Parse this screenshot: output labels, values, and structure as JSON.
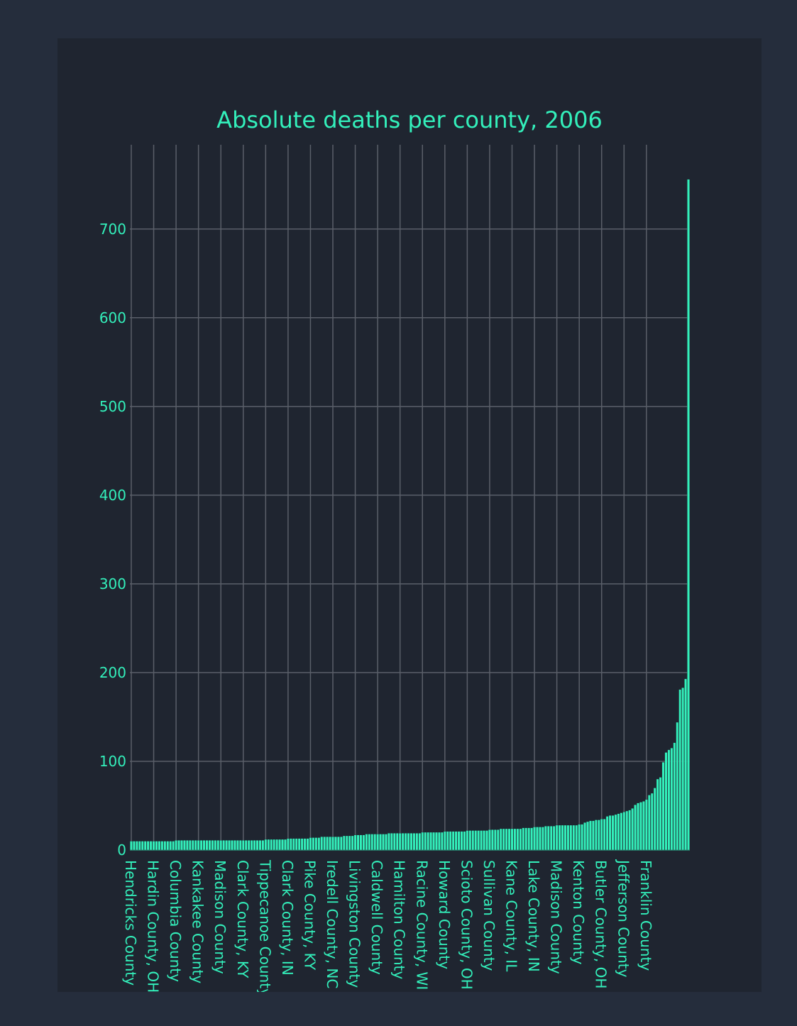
{
  "colors": {
    "background": "#252d3c",
    "panel": "#1f2530",
    "accent": "#33f0bb",
    "grid": "#5a5f69"
  },
  "chart_data": {
    "type": "bar",
    "title": "Absolute deaths per county, 2006",
    "xlabel": "",
    "ylabel": "",
    "ylim": [
      0,
      795
    ],
    "yticks": [
      0,
      100,
      200,
      300,
      400,
      500,
      600,
      700
    ],
    "grid": true,
    "categories_labeled": [
      "Hendricks County",
      "Hardin County, OH",
      "Columbia County",
      "Kankakee County",
      "Madison County",
      "Clark County, KY",
      "Tippecanoe County",
      "Clark County, IN",
      "Pike County, KY",
      "Iredell County, NC",
      "Livingston County",
      "Caldwell County",
      "Hamilton County",
      "Racine County, WI",
      "Howard County",
      "Scioto County, OH",
      "Sullivan County",
      "Kane County, IL",
      "Lake County, IN",
      "Madison County",
      "Kenton County",
      "Butler County, OH",
      "Jefferson County",
      "Franklin County"
    ],
    "values": [
      10,
      10,
      10,
      10,
      10,
      10,
      10,
      10,
      10,
      10,
      10,
      10,
      10,
      10,
      10,
      10,
      11,
      11,
      11,
      11,
      11,
      11,
      11,
      11,
      11,
      11,
      11,
      11,
      11,
      11,
      11,
      11,
      11,
      11,
      11,
      11,
      11,
      11,
      11,
      11,
      11,
      11,
      11,
      11,
      11,
      11,
      11,
      11,
      12,
      12,
      12,
      12,
      12,
      12,
      12,
      12,
      13,
      13,
      13,
      13,
      13,
      13,
      13,
      13,
      14,
      14,
      14,
      14,
      15,
      15,
      15,
      15,
      15,
      15,
      15,
      15,
      16,
      16,
      16,
      16,
      17,
      17,
      17,
      17,
      18,
      18,
      18,
      18,
      18,
      18,
      18,
      18,
      19,
      19,
      19,
      19,
      19,
      19,
      19,
      19,
      19,
      19,
      19,
      19,
      20,
      20,
      20,
      20,
      20,
      20,
      20,
      20,
      21,
      21,
      21,
      21,
      21,
      21,
      21,
      21,
      22,
      22,
      22,
      22,
      22,
      22,
      22,
      22,
      23,
      23,
      23,
      23,
      24,
      24,
      24,
      24,
      24,
      24,
      24,
      24,
      25,
      25,
      25,
      25,
      26,
      26,
      26,
      26,
      27,
      27,
      27,
      27,
      28,
      28,
      28,
      28,
      28,
      28,
      28,
      28,
      29,
      29,
      31,
      32,
      33,
      33,
      34,
      34,
      35,
      35,
      38,
      39,
      39,
      40,
      41,
      42,
      43,
      44,
      45,
      47,
      51,
      53,
      54,
      55,
      57,
      62,
      64,
      70,
      80,
      82,
      99,
      110,
      113,
      115,
      121,
      144,
      181,
      183,
      193,
      756
    ]
  }
}
